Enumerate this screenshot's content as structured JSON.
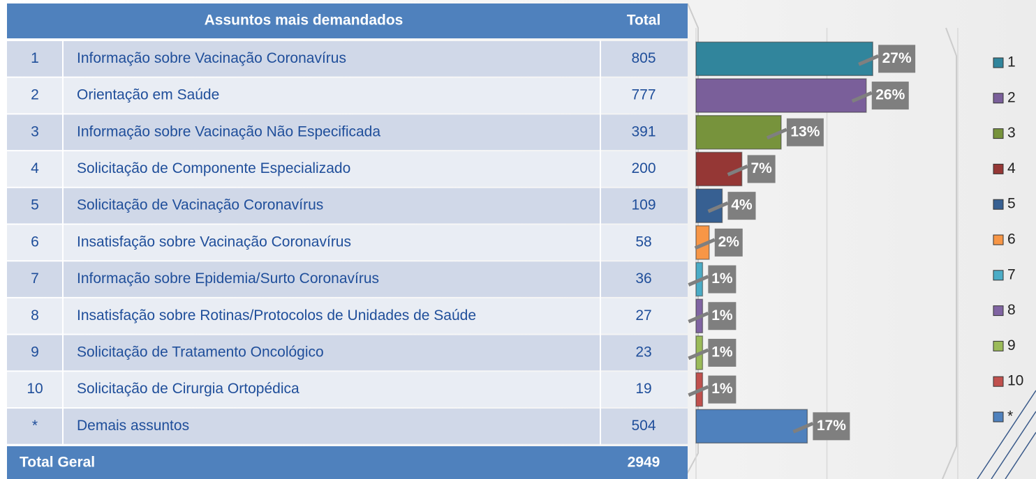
{
  "table": {
    "header": [
      "Assuntos mais demandados",
      "Total"
    ],
    "rows": [
      [
        "1",
        "Informação sobre Vacinação Coronavírus",
        "805"
      ],
      [
        "2",
        "Orientação em Saúde",
        "777"
      ],
      [
        "3",
        "Informação sobre Vacinação Não Especificada",
        "391"
      ],
      [
        "4",
        "Solicitação de Componente Especializado",
        "200"
      ],
      [
        "5",
        "Solicitação de Vacinação Coronavírus",
        "109"
      ],
      [
        "6",
        "Insatisfação sobre Vacinação Coronavírus",
        "58"
      ],
      [
        "7",
        "Informação sobre Epidemia/Surto Coronavírus",
        "36"
      ],
      [
        "8",
        "Insatisfação sobre Rotinas/Protocolos de Unidades de Saúde",
        "27"
      ],
      [
        "9",
        "Solicitação de Tratamento Oncológico",
        "23"
      ],
      [
        "10",
        "Solicitação de Cirurgia Ortopédica",
        "19"
      ],
      [
        "*",
        "Demais assuntos",
        "504"
      ]
    ],
    "footer": [
      "Total Geral",
      "2949"
    ]
  },
  "chart_data": {
    "type": "bar",
    "categories": [
      "1",
      "2",
      "3",
      "4",
      "5",
      "6",
      "7",
      "8",
      "9",
      "10",
      "*"
    ],
    "values": [
      27,
      26,
      13,
      7,
      4,
      2,
      1,
      1,
      1,
      1,
      17
    ],
    "value_labels": [
      "27%",
      "26%",
      "13%",
      "7%",
      "4%",
      "2%",
      "1%",
      "1%",
      "1%",
      "1%",
      "17%"
    ],
    "colors": [
      "#31859c",
      "#7a5f9a",
      "#77933c",
      "#953735",
      "#376092",
      "#f79646",
      "#4bacc6",
      "#8064a2",
      "#9bbb59",
      "#c0504d",
      "#4f81bd"
    ],
    "xlim": [
      0,
      40
    ],
    "xticks": [
      0,
      20,
      40
    ],
    "grid": true
  }
}
